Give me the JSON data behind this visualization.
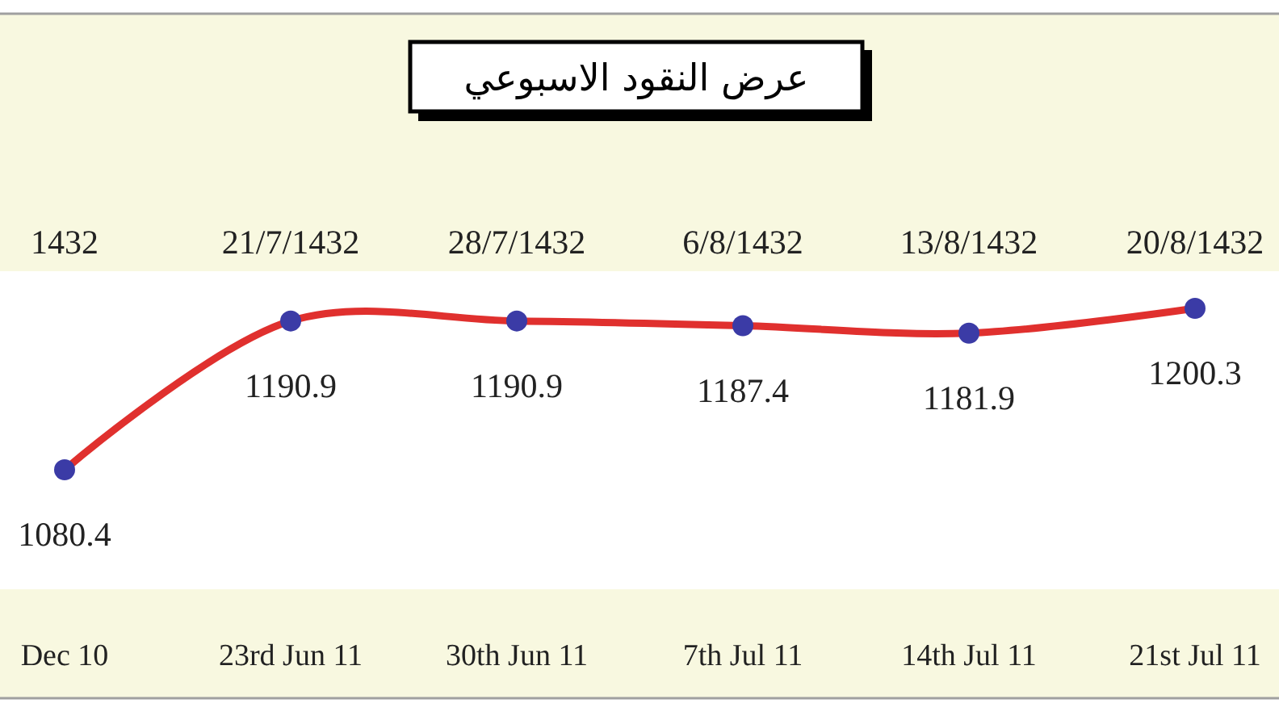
{
  "chart_data": {
    "type": "line",
    "title": "عرض النقود الاسبوعي",
    "categories": [
      "Dec 10",
      "23rd Jun 11",
      "30th Jun 11",
      "7th Jul 11",
      "14th Jul 11",
      "21st Jul 11"
    ],
    "series": [
      {
        "color": "#e0302e",
        "values": [
          1080.4,
          1190.9,
          1190.9,
          1187.4,
          1181.9,
          1200.3
        ]
      }
    ],
    "annotations": [
      "1432",
      "21/7/1432",
      "28/7/1432",
      "6/8/1432",
      "13/8/1432",
      "20/8/1432"
    ],
    "data_labels": true,
    "marker": "circle",
    "line_style": "solid"
  }
}
